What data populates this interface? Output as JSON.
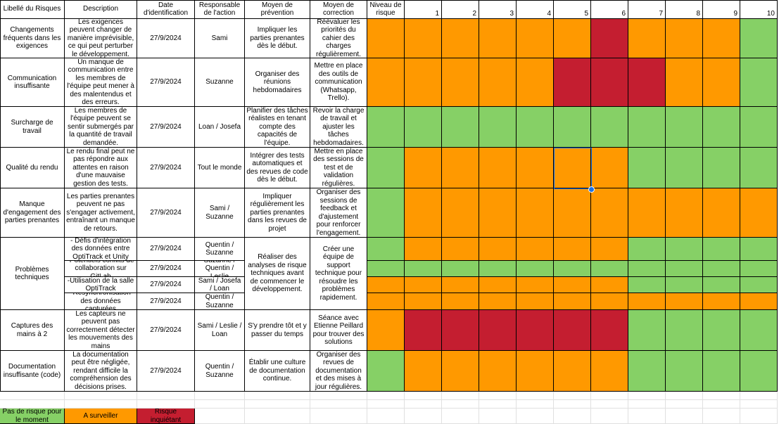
{
  "colors": {
    "green": "#86d066",
    "orange": "#ff9900",
    "red": "#c41e30"
  },
  "headers": [
    "Libellé du Risques",
    "Description",
    "Date d'identification",
    "Responsable de l'action",
    "Moyen de prévention",
    "Moyen de correction",
    "Niveau de risque",
    "1",
    "2",
    "3",
    "4",
    "5",
    "6",
    "7",
    "8",
    "9",
    "10"
  ],
  "risks": [
    {
      "label": "Changements fréquents dans les exigences",
      "prevention": "Impliquer les parties prenantes dès le début.",
      "correction": "Réévaluer les priorités du cahier des charges régulièrement.",
      "subs": [
        {
          "description": "Les exigences peuvent changer de manière imprévisible, ce qui peut perturber le développement.",
          "date": "27/9/2024",
          "owner": "Sami",
          "level": "orange",
          "matrix": [
            "orange",
            "orange",
            "orange",
            "orange",
            "orange",
            "red",
            "orange",
            "orange",
            "orange",
            "green"
          ]
        }
      ]
    },
    {
      "label": "Communication insuffisante",
      "prevention": "Organiser des réunions hebdomadaires",
      "correction": "Mettre en place des outils de communication (Whatsapp, Trello).",
      "subs": [
        {
          "description": "Un manque de communication entre les membres de l'équipe peut mener à des malentendus et des erreurs.",
          "date": "27/9/2024",
          "owner": "Suzanne",
          "level": "orange",
          "matrix": [
            "orange",
            "orange",
            "orange",
            "orange",
            "red",
            "red",
            "red",
            "orange",
            "orange",
            "green"
          ]
        }
      ]
    },
    {
      "label": "Surcharge de travail",
      "prevention": "Planifier des tâches réalistes en tenant compte des capacités de l'équipe.",
      "correction": "Revoir la charge de travail et ajuster les tâches hebdomadaires.",
      "subs": [
        {
          "description": "Les membres de l'équipe peuvent se sentir submergés par la quantité de travail demandée.",
          "date": "27/9/2024",
          "owner": "Loan / Josefa",
          "level": "green",
          "matrix": [
            "green",
            "green",
            "green",
            "green",
            "green",
            "green",
            "green",
            "green",
            "green",
            "green"
          ]
        }
      ]
    },
    {
      "label": "Qualité du rendu",
      "prevention": "Intégrer des tests automatiques et des revues de code dès le début.",
      "correction": "Mettre en place des sessions de test et de validation régulières.",
      "subs": [
        {
          "description": "Le rendu final peut ne pas répondre aux attentes en raison d'une mauvaise gestion des tests.",
          "date": "27/9/2024",
          "owner": "Tout le monde",
          "level": "green",
          "matrix": [
            "orange",
            "orange",
            "orange",
            "orange",
            "orange",
            "orange",
            "green",
            "green",
            "green",
            "green"
          ]
        }
      ]
    },
    {
      "label": "Manque d'engagement des parties prenantes",
      "prevention": "Impliquer régulièrement les parties prenantes dans les revues de projet",
      "correction": "Organiser des sessions de feedback et d'ajustement pour renforcer l'engagement.",
      "subs": [
        {
          "description": "Les parties prenantes peuvent ne pas s'engager activement, entraînant un manque de retours.",
          "date": "27/9/2024",
          "owner": "Sami / Suzanne",
          "level": "green",
          "matrix": [
            "orange",
            "orange",
            "orange",
            "orange",
            "orange",
            "orange",
            "orange",
            "orange",
            "orange",
            "orange"
          ]
        }
      ]
    },
    {
      "label": "Problèmes techniques",
      "prevention": "Réaliser des analyses de risque techniques avant de commencer le développement.",
      "correction": "Créer une équipe de support technique pour résoudre les problèmes rapidement.",
      "subs": [
        {
          "description": "- Défis d'intégration des données entre OptiTrack et Unity",
          "date": "27/9/2024",
          "owner": "Quentin / Suzanne",
          "level": "green",
          "matrix": [
            "orange",
            "orange",
            "orange",
            "orange",
            "orange",
            "orange",
            "green",
            "green",
            "green",
            "green"
          ]
        },
        {
          "description": "-Potentiels conflits de collaboration sur GitLab",
          "date": "27/9/2024",
          "owner": "Suzanne / Quentin / Leslie",
          "level": "green",
          "matrix": [
            "green",
            "green",
            "green",
            "green",
            "green",
            "green",
            "green",
            "green",
            "green",
            "green"
          ]
        },
        {
          "description": "-Utilisation de la salle OptiTrack",
          "date": "27/9/2024",
          "owner": "Sami / Josefa / Loan",
          "level": "orange",
          "matrix": [
            "orange",
            "orange",
            "orange",
            "orange",
            "orange",
            "orange",
            "green",
            "green",
            "green",
            "green"
          ]
        },
        {
          "description": "-Resynchronisation des données capturées",
          "date": "27/9/2024",
          "owner": "Quentin / Suzanne",
          "level": "orange",
          "matrix": [
            "orange",
            "orange",
            "orange",
            "orange",
            "orange",
            "orange",
            "orange",
            "orange",
            "orange",
            "orange"
          ]
        }
      ]
    },
    {
      "label": "Captures des mains à 2",
      "prevention": "S'y prendre tôt et y passer du temps",
      "correction": "Séance avec Etienne Peillard pour trouver des solutions",
      "subs": [
        {
          "description": "Les capteurs ne peuvent pas correctement détecter les mouvements des mains",
          "date": "27/9/2024",
          "owner": "Sami / Leslie / Loan",
          "level": "orange",
          "matrix": [
            "red",
            "red",
            "red",
            "red",
            "red",
            "red",
            "green",
            "green",
            "green",
            "green"
          ]
        }
      ]
    },
    {
      "label": "Documentation insuffisante (code)",
      "prevention": "Établir une culture de documentation continue.",
      "correction": "Organiser des revues de documentation et des mises à jour régulières.",
      "subs": [
        {
          "description": "La documentation peut être négligée, rendant difficile la compréhension des décisions prises.",
          "date": "27/9/2024",
          "owner": "Quentin / Suzanne",
          "level": "green",
          "matrix": [
            "orange",
            "orange",
            "orange",
            "orange",
            "orange",
            "orange",
            "green",
            "green",
            "green",
            "green"
          ]
        }
      ]
    }
  ],
  "legend": [
    {
      "label": "Pas de risque pour le moment",
      "color": "green"
    },
    {
      "label": "A surveiller",
      "color": "orange"
    },
    {
      "label": "Risque inquiétant",
      "color": "red"
    }
  ]
}
